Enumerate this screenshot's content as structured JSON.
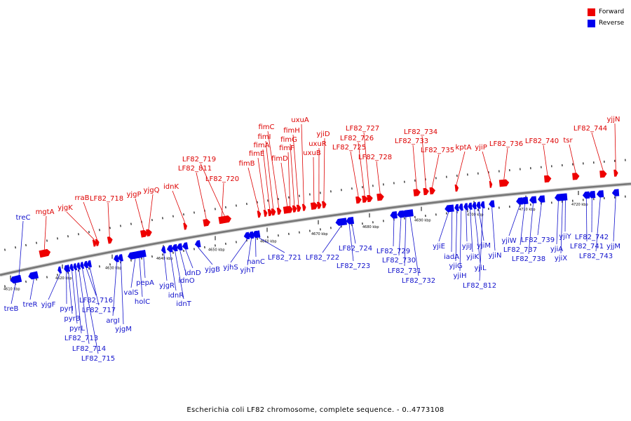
{
  "caption": "Escherichia coli LF82 chromosome, complete sequence. - 0..4773108",
  "legend": [
    {
      "label": "Forward",
      "color": "#ee0000"
    },
    {
      "label": "Reverse",
      "color": "#0000ee"
    }
  ],
  "colors": {
    "forward": "#ee0000",
    "reverse": "#0000ee",
    "backbone": "#777777"
  },
  "scale": {
    "unit": "kbp",
    "ticks": [
      "4610 kbp",
      "4620 kbp",
      "4630 kbp",
      "4640 kbp",
      "4650 kbp",
      "4660 kbp",
      "4670 kbp",
      "4680 kbp",
      "4690 kbp",
      "4700 kbp",
      "4710 kbp",
      "4720 kbp"
    ]
  },
  "forward_genes": [
    "mgtA",
    "yjgK",
    "rraB",
    "LF82_718",
    "yjgP",
    "yjgQ",
    "idnK",
    "LF82_811",
    "LF82_719",
    "LF82_720",
    "fimB",
    "fimE",
    "fimA",
    "fimI",
    "fimC",
    "fimD",
    "fimF",
    "fimG",
    "fimH",
    "uxuA",
    "uxuB",
    "uxuR",
    "yjiD",
    "LF82_725",
    "LF82_726",
    "LF82_727",
    "LF82_728",
    "LF82_733",
    "LF82_734",
    "LF82_735",
    "kptA",
    "yjiP",
    "LF82_736",
    "LF82_740",
    "tsr",
    "LF82_744",
    "yjjN"
  ],
  "reverse_genes": [
    "treC",
    "treB",
    "treR",
    "yjgF",
    "pyrI",
    "pyrB",
    "pyrL",
    "LF82_713",
    "LF82_714",
    "LF82_715",
    "LF82_716",
    "LF82_717",
    "argI",
    "yjgM",
    "valS",
    "holC",
    "pepA",
    "yjgR",
    "idnR",
    "idnT",
    "idnO",
    "idnD",
    "yjgB",
    "yjhS",
    "yjhT",
    "nanC",
    "LF82_721",
    "LF82_722",
    "LF82_723",
    "LF82_724",
    "LF82_729",
    "LF82_730",
    "LF82_731",
    "LF82_732",
    "yjiE",
    "iadA",
    "yjiG",
    "yjiH",
    "yjiJ",
    "yjiK",
    "yjiL",
    "yjiM",
    "LF82_812",
    "yjiN",
    "yjiW",
    "LF82_737",
    "LF82_738",
    "LF82_739",
    "yjiA",
    "yjiX",
    "yjiY",
    "LF82_741",
    "LF82_742",
    "LF82_743",
    "yjjM"
  ]
}
